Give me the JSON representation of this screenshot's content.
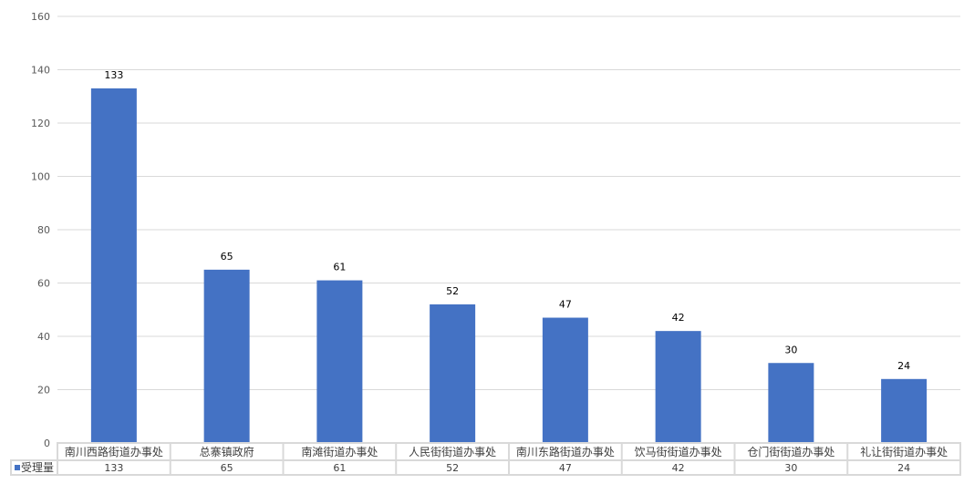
{
  "chart_data": {
    "type": "bar",
    "categories": [
      "南川西路街道办事处",
      "总寨镇政府",
      "南滩街道办事处",
      "人民街街道办事处",
      "南川东路街道办事处",
      "饮马街街道办事处",
      "仓门街街道办事处",
      "礼让街街道办事处"
    ],
    "series": [
      {
        "name": "受理量",
        "values": [
          133,
          65,
          61,
          52,
          47,
          42,
          30,
          24
        ],
        "color": "#4472C4"
      }
    ],
    "ylim": [
      0,
      160
    ],
    "yticks": [
      0,
      20,
      40,
      60,
      80,
      100,
      120,
      140,
      160
    ],
    "grid": true,
    "data_labels": true,
    "legend": "data-table",
    "title": "",
    "xlabel": "",
    "ylabel": ""
  }
}
